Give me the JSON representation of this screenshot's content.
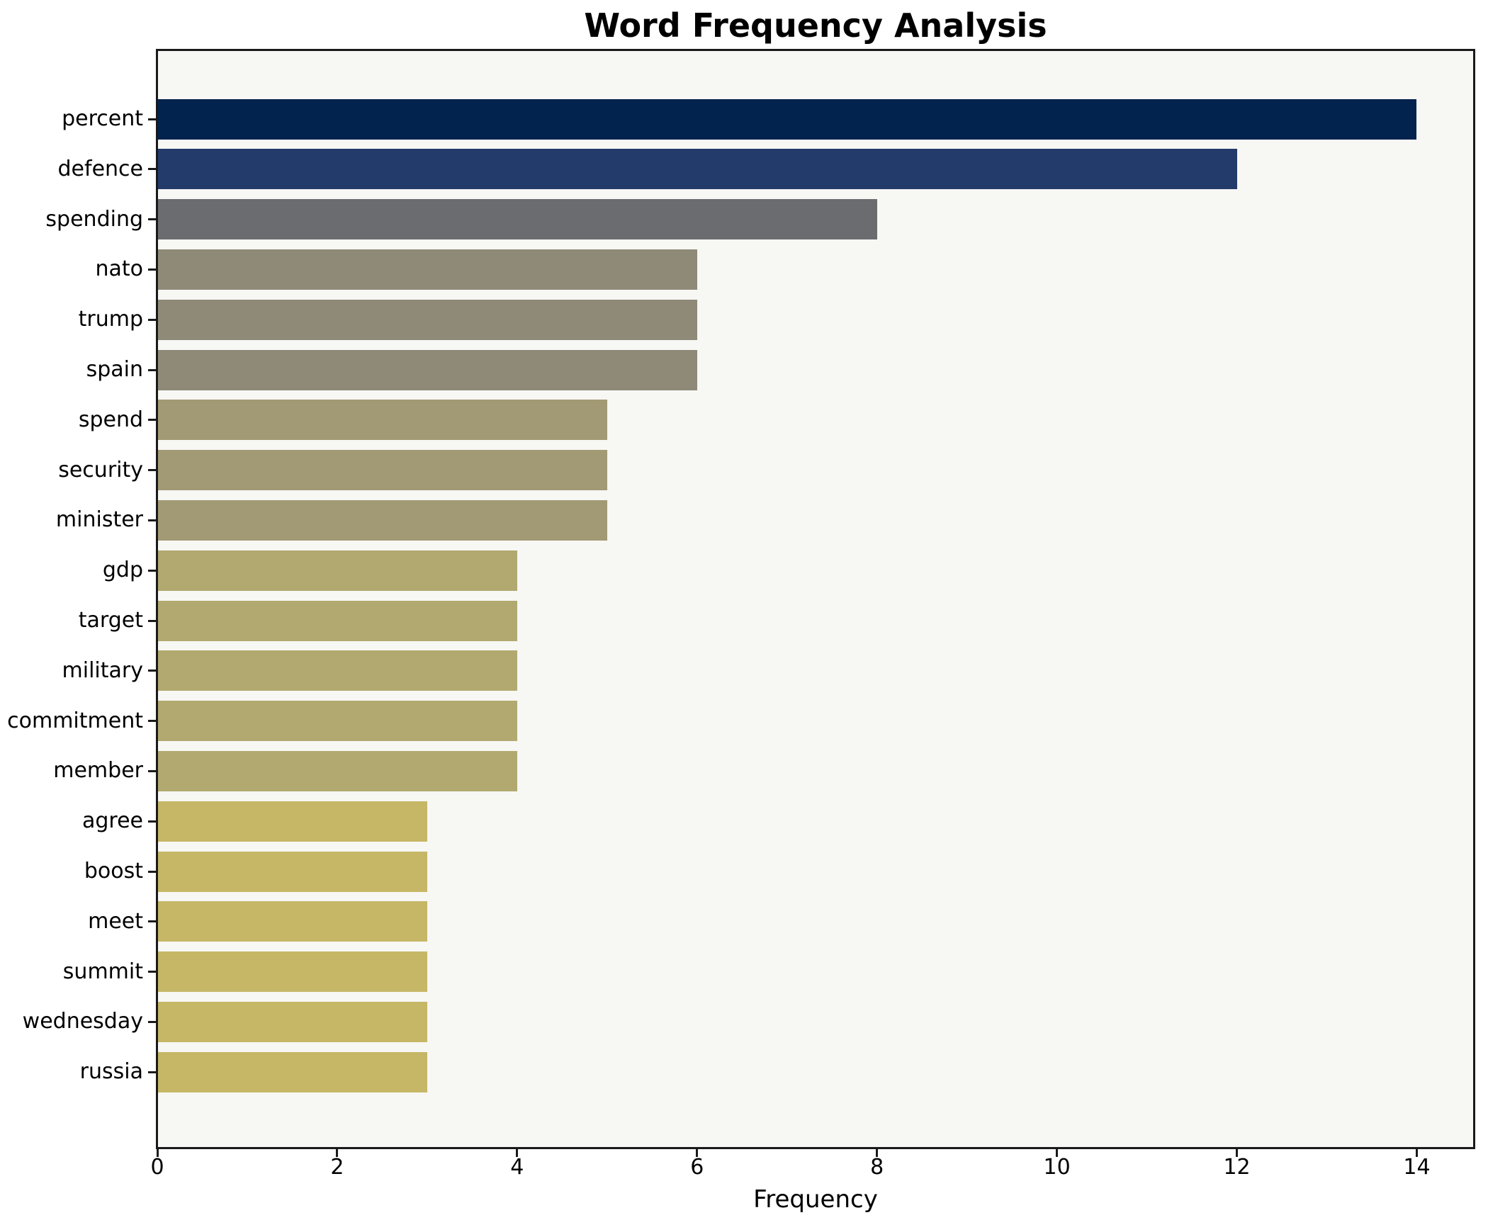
{
  "figure": {
    "title": "Word Frequency Analysis",
    "xlabel": "Frequency"
  },
  "chart_data": {
    "type": "bar",
    "orientation": "horizontal",
    "title": "Word Frequency Analysis",
    "xlabel": "Frequency",
    "ylabel": "",
    "categories": [
      "percent",
      "defence",
      "spending",
      "nato",
      "trump",
      "spain",
      "spend",
      "security",
      "minister",
      "gdp",
      "target",
      "military",
      "commitment",
      "member",
      "agree",
      "boost",
      "meet",
      "summit",
      "wednesday",
      "russia"
    ],
    "values": [
      14,
      12,
      8,
      6,
      6,
      6,
      5,
      5,
      5,
      4,
      4,
      4,
      4,
      4,
      3,
      3,
      3,
      3,
      3,
      3
    ],
    "bar_colors": [
      "#02234e",
      "#233b6b",
      "#6b6c70",
      "#8f8a78",
      "#8f8a78",
      "#8f8a78",
      "#a29a74",
      "#a29a74",
      "#a29a74",
      "#b1a96f",
      "#b1a96f",
      "#b1a96f",
      "#b1a96f",
      "#b1a96f",
      "#c6b766",
      "#c6b766",
      "#c6b766",
      "#c6b766",
      "#c6b766",
      "#c6b766"
    ],
    "xlim": [
      0,
      14.65
    ],
    "xticks": [
      0,
      2,
      4,
      6,
      8,
      10,
      12,
      14
    ],
    "grid": false,
    "legend": null,
    "colors": {
      "plot_background": "#f7f7f4",
      "figure_background": "#ffffff",
      "spine": "#1a1a1a",
      "text": "#000000"
    }
  }
}
